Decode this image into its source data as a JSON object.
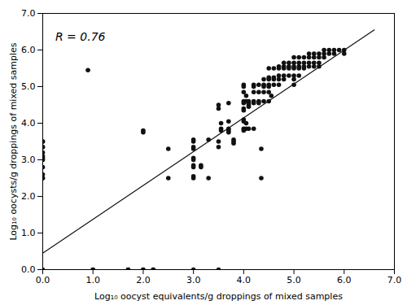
{
  "chart_data": {
    "type": "scatter",
    "xlabel": "Log₁₀ oocyst equivalents/g droppings of mixed samples",
    "ylabel": "Log₁₀ oocysts/g droppings of mixed samples",
    "xlim": [
      0,
      7
    ],
    "ylim": [
      0,
      7
    ],
    "xticks": [
      0,
      1,
      2,
      3,
      4,
      5,
      6,
      7
    ],
    "yticks": [
      0,
      1,
      2,
      3,
      4,
      5,
      6,
      7
    ],
    "grid": false,
    "annotations": [
      {
        "text": "R = 0.76",
        "x": 0.25,
        "y": 6.25
      }
    ],
    "series": [
      {
        "type": "scatter",
        "color": "#111111",
        "marker": "circle",
        "x": [
          0.0,
          0.0,
          0.0,
          0.0,
          0.0,
          0.0,
          0.0,
          0.0,
          0.0,
          0.0,
          0.0,
          0.0,
          0.0,
          0.9,
          1.0,
          1.0,
          1.7,
          1.7,
          2.0,
          2.0,
          2.0,
          2.0,
          2.5,
          2.5,
          3.0,
          3.0,
          3.0,
          3.0,
          3.0,
          3.0,
          3.0,
          3.0,
          3.0,
          3.0,
          3.0,
          3.15,
          3.15,
          3.3,
          3.3,
          3.5,
          3.5,
          3.5,
          3.5,
          3.5,
          3.7,
          3.7,
          3.7,
          3.7,
          3.7,
          3.8,
          3.8,
          3.8,
          4.0,
          4.0,
          4.0,
          4.0,
          4.0,
          4.0,
          4.0,
          4.0,
          4.0,
          4.0,
          4.0,
          4.05,
          4.05,
          4.05,
          4.05,
          4.1,
          4.1,
          4.1,
          4.1,
          4.1,
          4.2,
          4.2,
          4.2,
          4.2,
          4.2,
          4.2,
          4.3,
          4.3,
          4.3,
          4.3,
          4.4,
          4.4,
          4.4,
          4.4,
          4.4,
          4.5,
          4.5,
          4.5,
          4.5,
          4.5,
          4.5,
          4.5,
          4.6,
          4.6,
          4.6,
          4.6,
          4.7,
          4.7,
          4.7,
          4.7,
          4.7,
          4.8,
          4.8,
          4.8,
          4.8,
          4.8,
          4.9,
          4.9,
          4.9,
          4.9,
          5.0,
          5.0,
          5.0,
          5.0,
          5.0,
          5.0,
          5.0,
          5.1,
          5.1,
          5.1,
          5.1,
          5.1,
          5.2,
          5.2,
          5.2,
          5.2,
          5.3,
          5.3,
          5.3,
          5.3,
          5.4,
          5.4,
          5.4,
          5.4,
          5.5,
          5.5,
          5.5,
          5.5,
          5.6,
          5.6,
          5.6,
          5.7,
          5.7,
          5.8,
          5.8,
          5.9,
          6.0,
          6.0,
          4.35,
          4.35,
          3.55,
          3.55,
          3.55,
          2.2,
          2.2,
          4.55
        ],
        "values": [
          3.5,
          3.5,
          3.35,
          3.35,
          3.2,
          3.1,
          3.05,
          3.0,
          2.8,
          2.6,
          2.5,
          2.5,
          0.0,
          5.45,
          0.0,
          0.0,
          0.0,
          0.0,
          0.0,
          0.0,
          3.8,
          3.75,
          2.5,
          3.3,
          3.55,
          3.5,
          3.35,
          3.3,
          3.05,
          3.0,
          2.85,
          2.8,
          2.55,
          2.5,
          0.0,
          2.85,
          2.8,
          3.55,
          2.5,
          4.5,
          4.4,
          3.5,
          3.35,
          0.0,
          4.55,
          4.05,
          3.85,
          3.8,
          3.75,
          3.55,
          3.5,
          3.45,
          5.05,
          5.0,
          4.85,
          4.6,
          4.55,
          4.4,
          4.35,
          4.1,
          4.05,
          3.85,
          3.8,
          4.75,
          4.6,
          4.0,
          3.85,
          4.6,
          4.55,
          4.5,
          4.45,
          3.85,
          5.05,
          5.0,
          4.85,
          4.6,
          4.55,
          3.85,
          5.05,
          4.85,
          4.6,
          4.55,
          5.2,
          5.05,
          5.0,
          4.85,
          4.6,
          5.5,
          5.25,
          5.2,
          5.05,
          5.0,
          4.85,
          4.6,
          5.5,
          5.25,
          5.2,
          5.05,
          5.55,
          5.5,
          5.3,
          5.2,
          5.05,
          5.65,
          5.55,
          5.5,
          5.3,
          5.2,
          5.65,
          5.55,
          5.5,
          5.3,
          5.8,
          5.65,
          5.55,
          5.5,
          5.3,
          5.2,
          5.05,
          5.8,
          5.65,
          5.55,
          5.5,
          5.3,
          5.8,
          5.65,
          5.55,
          5.5,
          5.9,
          5.8,
          5.65,
          5.55,
          5.9,
          5.8,
          5.65,
          5.55,
          5.9,
          5.8,
          5.65,
          5.55,
          6.0,
          5.9,
          5.8,
          6.0,
          5.9,
          6.0,
          5.9,
          6.0,
          6.0,
          5.9,
          3.3,
          2.5,
          4.0,
          3.85,
          3.8,
          0.0,
          0.0,
          4.75
        ]
      },
      {
        "type": "line",
        "color": "#111111",
        "x": [
          0,
          6.6
        ],
        "values": [
          0.45,
          6.55
        ]
      }
    ]
  }
}
